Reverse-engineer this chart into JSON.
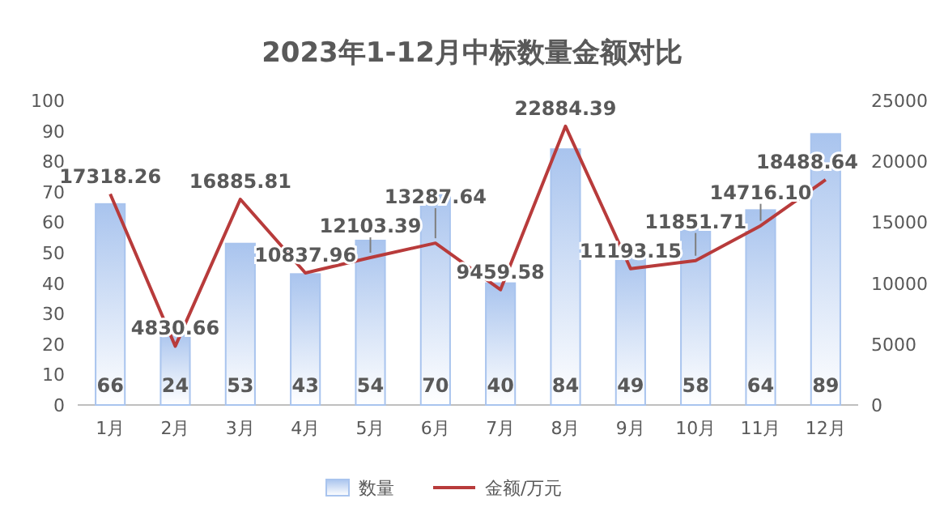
{
  "chart_data": {
    "type": "bar",
    "title": "2023年1-12月中标数量金额对比",
    "categories": [
      "1月",
      "2月",
      "3月",
      "4月",
      "5月",
      "6月",
      "7月",
      "8月",
      "9月",
      "10月",
      "11月",
      "12月"
    ],
    "series": [
      {
        "name": "数量",
        "axis": "y",
        "color": "#a9c4ee",
        "values": [
          66,
          24,
          53,
          43,
          54,
          70,
          40,
          84,
          49,
          58,
          64,
          89
        ],
        "value_labels": [
          "66",
          "24",
          "53",
          "43",
          "54",
          "70",
          "40",
          "84",
          "49",
          "58",
          "64",
          "89"
        ]
      },
      {
        "name": "金额/万元",
        "type": "line",
        "axis": "y2",
        "color": "#b83b3b",
        "values": [
          17318.26,
          4830.66,
          16885.81,
          10837.96,
          12103.39,
          13287.64,
          9459.58,
          22884.39,
          11193.15,
          11851.71,
          14716.1,
          18488.64
        ],
        "value_labels": [
          "17318.26",
          "4830.66",
          "16885.81",
          "10837.96",
          "12103.39",
          "13287.64",
          "9459.58",
          "22884.39",
          "11193.15",
          "11851.71",
          "14716.10",
          "18488.64"
        ]
      }
    ],
    "ylim": [
      0,
      100
    ],
    "yticks": [
      0,
      10,
      20,
      30,
      40,
      50,
      60,
      70,
      80,
      90,
      100
    ],
    "y2lim": [
      0,
      25000
    ],
    "y2ticks": [
      0,
      5000,
      10000,
      15000,
      20000,
      25000
    ],
    "legend": "bottom",
    "grid": false
  }
}
